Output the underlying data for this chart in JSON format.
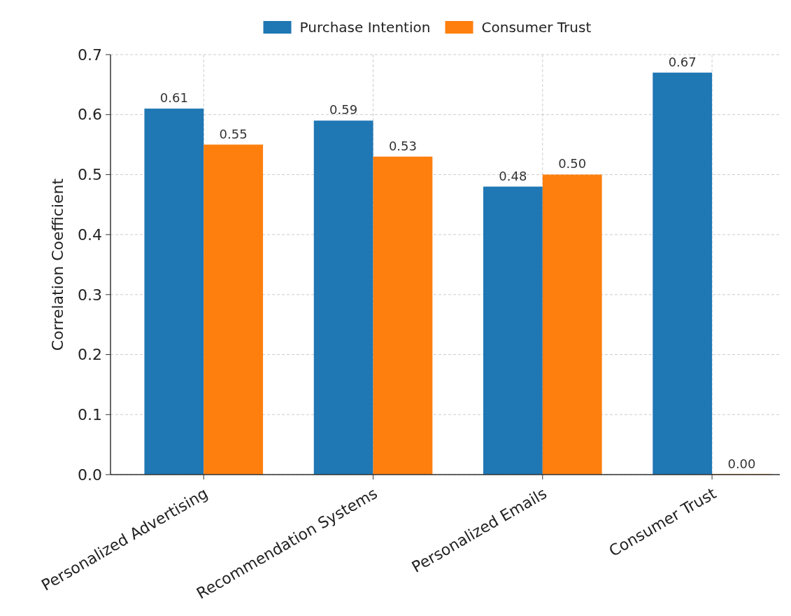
{
  "chart_data": {
    "type": "bar",
    "ylabel": "Correlation Coefficient",
    "categories": [
      "Personalized Advertising",
      "Recommendation Systems",
      "Personalized Emails",
      "Consumer Trust"
    ],
    "series": [
      {
        "name": "Purchase Intention",
        "color": "#1f77b4",
        "values": [
          0.61,
          0.59,
          0.48,
          0.67
        ],
        "value_labels": [
          "0.61",
          "0.59",
          "0.48",
          "0.67"
        ]
      },
      {
        "name": "Consumer Trust",
        "color": "#ff7f0e",
        "values": [
          0.55,
          0.53,
          0.5,
          0
        ],
        "value_labels": [
          "0.55",
          "0.53",
          "0.50",
          "0.00"
        ]
      }
    ],
    "ylim": [
      0,
      0.7
    ],
    "yticks": [
      {
        "value": 0,
        "label": "0.0"
      },
      {
        "value": 0.1,
        "label": "0.1"
      },
      {
        "value": 0.2,
        "label": "0.2"
      },
      {
        "value": 0.3,
        "label": "0.3"
      },
      {
        "value": 0.4,
        "label": "0.4"
      },
      {
        "value": 0.5,
        "label": "0.5"
      },
      {
        "value": 0.6,
        "label": "0.6"
      },
      {
        "value": 0.7,
        "label": "0.7"
      }
    ],
    "grid": true,
    "legend": "top"
  }
}
